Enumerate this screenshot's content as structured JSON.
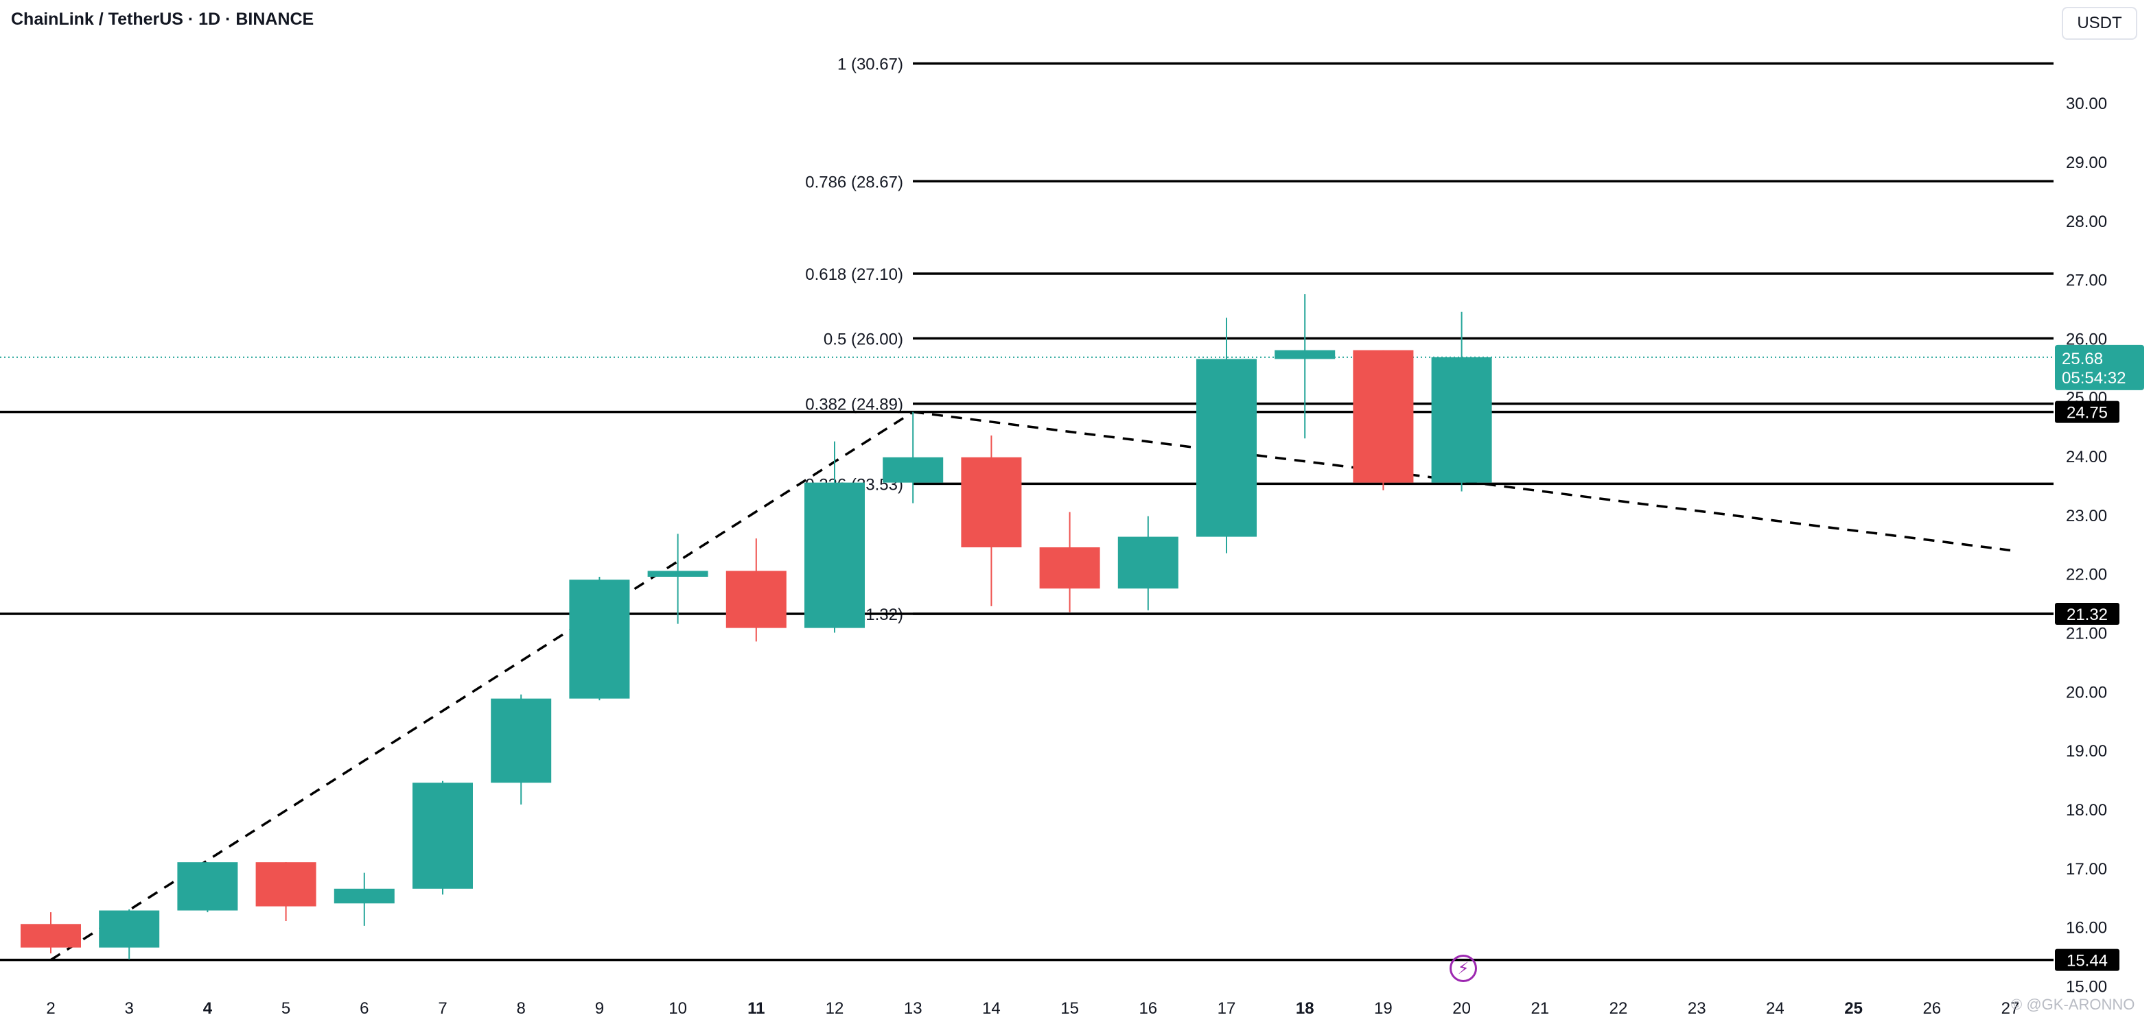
{
  "header": {
    "title": "ChainLink / TetherUS · 1D · BINANCE",
    "currency_label": "USDT"
  },
  "watermark": "© @GK-ARONNO",
  "colors": {
    "up": "#26a69a",
    "down": "#ef5350",
    "line": "#000000",
    "axis_text": "#131722",
    "price_tag_bg": "#26a69a",
    "label_bg": "#000000"
  },
  "icons": {
    "event_marker": "lightning-bolt-icon"
  },
  "current_price": {
    "price": "25.68",
    "countdown": "05:54:32"
  },
  "chart_data": {
    "type": "candlestick",
    "title": "ChainLink / TetherUS · 1D · BINANCE",
    "ylim": [
      14.62,
      31.4
    ],
    "y_ticks": [
      "15.00",
      "16.00",
      "17.00",
      "18.00",
      "19.00",
      "20.00",
      "21.00",
      "22.00",
      "23.00",
      "24.00",
      "25.00",
      "26.00",
      "27.00",
      "28.00",
      "29.00",
      "30.00"
    ],
    "x_ticks": [
      {
        "label": "2",
        "bold": false
      },
      {
        "label": "3",
        "bold": false
      },
      {
        "label": "4",
        "bold": true
      },
      {
        "label": "5",
        "bold": false
      },
      {
        "label": "6",
        "bold": false
      },
      {
        "label": "7",
        "bold": false
      },
      {
        "label": "8",
        "bold": false
      },
      {
        "label": "9",
        "bold": false
      },
      {
        "label": "10",
        "bold": false
      },
      {
        "label": "11",
        "bold": true
      },
      {
        "label": "12",
        "bold": false
      },
      {
        "label": "13",
        "bold": false
      },
      {
        "label": "14",
        "bold": false
      },
      {
        "label": "15",
        "bold": false
      },
      {
        "label": "16",
        "bold": false
      },
      {
        "label": "17",
        "bold": false
      },
      {
        "label": "18",
        "bold": true
      },
      {
        "label": "19",
        "bold": false
      },
      {
        "label": "20",
        "bold": false
      },
      {
        "label": "21",
        "bold": false
      },
      {
        "label": "22",
        "bold": false
      },
      {
        "label": "23",
        "bold": false
      },
      {
        "label": "24",
        "bold": false
      },
      {
        "label": "25",
        "bold": true
      },
      {
        "label": "26",
        "bold": false
      },
      {
        "label": "27",
        "bold": false
      }
    ],
    "candles": [
      {
        "day": "2",
        "open": 16.05,
        "high": 16.25,
        "low": 15.55,
        "close": 15.65
      },
      {
        "day": "3",
        "open": 15.65,
        "high": 16.3,
        "low": 15.45,
        "close": 16.28
      },
      {
        "day": "4",
        "open": 16.28,
        "high": 17.1,
        "low": 16.25,
        "close": 17.1
      },
      {
        "day": "5",
        "open": 17.1,
        "high": 17.1,
        "low": 16.1,
        "close": 16.35
      },
      {
        "day": "6",
        "open": 16.4,
        "high": 16.92,
        "low": 16.02,
        "close": 16.65
      },
      {
        "day": "7",
        "open": 16.65,
        "high": 18.48,
        "low": 16.55,
        "close": 18.45
      },
      {
        "day": "8",
        "open": 18.45,
        "high": 19.95,
        "low": 18.08,
        "close": 19.88
      },
      {
        "day": "9",
        "open": 19.88,
        "high": 21.95,
        "low": 19.85,
        "close": 21.9
      },
      {
        "day": "10",
        "open": 21.95,
        "high": 22.68,
        "low": 21.15,
        "close": 22.05
      },
      {
        "day": "11",
        "open": 22.05,
        "high": 22.6,
        "low": 20.85,
        "close": 21.08
      },
      {
        "day": "12",
        "open": 21.08,
        "high": 24.25,
        "low": 21.0,
        "close": 23.55
      },
      {
        "day": "13",
        "open": 23.55,
        "high": 24.75,
        "low": 23.2,
        "close": 23.98
      },
      {
        "day": "14",
        "open": 23.98,
        "high": 24.35,
        "low": 21.45,
        "close": 22.45
      },
      {
        "day": "15",
        "open": 22.45,
        "high": 23.05,
        "low": 21.35,
        "close": 21.75
      },
      {
        "day": "16",
        "open": 21.75,
        "high": 22.98,
        "low": 21.38,
        "close": 22.63
      },
      {
        "day": "17",
        "open": 22.63,
        "high": 26.35,
        "low": 22.35,
        "close": 25.65
      },
      {
        "day": "18",
        "open": 25.65,
        "high": 26.75,
        "low": 24.3,
        "close": 25.8
      },
      {
        "day": "19",
        "open": 25.8,
        "high": 25.8,
        "low": 23.42,
        "close": 23.55
      },
      {
        "day": "20",
        "open": 23.55,
        "high": 26.45,
        "low": 23.4,
        "close": 25.68
      }
    ],
    "fib_levels": [
      {
        "label": "1 (30.67)",
        "value": 30.67
      },
      {
        "label": "0.786 (28.67)",
        "value": 28.67
      },
      {
        "label": "0.618 (27.10)",
        "value": 27.1
      },
      {
        "label": "0.5 (26.00)",
        "value": 26.0
      },
      {
        "label": "0.382 (24.89)",
        "value": 24.89
      },
      {
        "label": "0.236 (23.53)",
        "value": 23.53
      },
      {
        "label": "0 (21.32)",
        "value": 21.32
      }
    ],
    "horizontal_lines": [
      {
        "label": "24.75",
        "value": 24.75
      },
      {
        "label": "21.32",
        "value": 21.32
      },
      {
        "label": "15.44",
        "value": 15.44
      }
    ],
    "trend_lines": [
      {
        "from": {
          "day": "2",
          "price": 15.44
        },
        "to": {
          "day": "13",
          "price": 24.75
        }
      },
      {
        "from": {
          "day": "13",
          "price": 24.75
        },
        "to": {
          "day": "27",
          "price": 22.4
        }
      }
    ]
  }
}
